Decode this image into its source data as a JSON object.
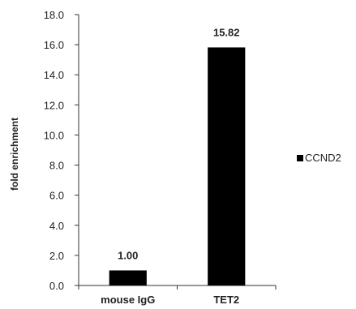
{
  "chart_data": {
    "type": "bar",
    "categories": [
      "mouse IgG",
      "TET2"
    ],
    "series": [
      {
        "name": "CCND2",
        "values": [
          1.0,
          15.82
        ]
      }
    ],
    "data_labels": [
      "1.00",
      "15.82"
    ],
    "ylabel": "fold enrichment",
    "xlabel": "",
    "ylim": [
      0,
      18
    ],
    "yticks": [
      "0.0",
      "2.0",
      "4.0",
      "6.0",
      "8.0",
      "10.0",
      "12.0",
      "14.0",
      "16.0",
      "18.0"
    ],
    "ytick_values": [
      0,
      2,
      4,
      6,
      8,
      10,
      12,
      14,
      16,
      18
    ],
    "grid": false,
    "legend_position": "right",
    "bar_color": "#000000"
  }
}
